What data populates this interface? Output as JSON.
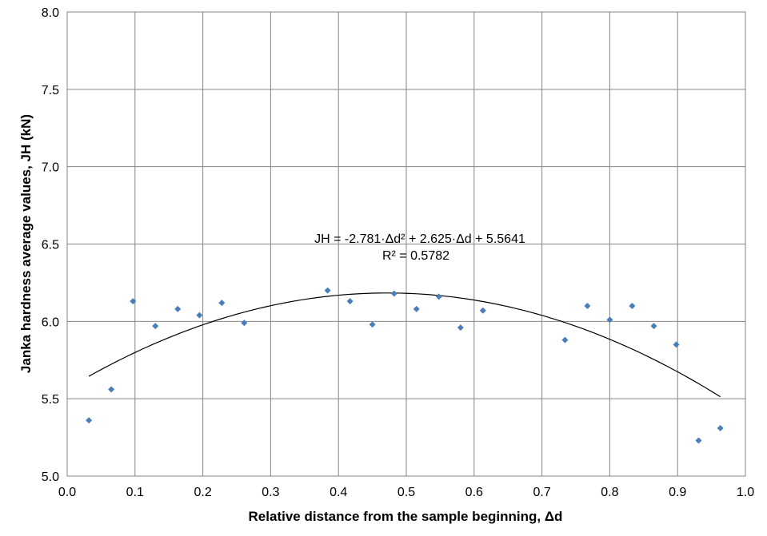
{
  "chart_data": {
    "type": "scatter",
    "xlabel": "Relative distance from the sample beginning, Δd",
    "ylabel": "Janka hardness average values, JH (kN)",
    "xlim": [
      0.0,
      1.0
    ],
    "ylim": [
      5.0,
      8.0
    ],
    "xticks": [
      "0.0",
      "0.1",
      "0.2",
      "0.3",
      "0.4",
      "0.5",
      "0.6",
      "0.7",
      "0.8",
      "0.9",
      "1.0"
    ],
    "yticks": [
      "5.0",
      "5.5",
      "6.0",
      "6.5",
      "7.0",
      "7.5",
      "8.0"
    ],
    "grid": true,
    "marker_color": "#4a7ebb",
    "points": [
      {
        "x": 0.032,
        "y": 5.36
      },
      {
        "x": 0.065,
        "y": 5.56
      },
      {
        "x": 0.097,
        "y": 6.13
      },
      {
        "x": 0.13,
        "y": 5.97
      },
      {
        "x": 0.163,
        "y": 6.08
      },
      {
        "x": 0.195,
        "y": 6.04
      },
      {
        "x": 0.228,
        "y": 6.12
      },
      {
        "x": 0.261,
        "y": 5.99
      },
      {
        "x": 0.384,
        "y": 6.2
      },
      {
        "x": 0.417,
        "y": 6.13
      },
      {
        "x": 0.45,
        "y": 5.98
      },
      {
        "x": 0.482,
        "y": 6.18
      },
      {
        "x": 0.515,
        "y": 6.08
      },
      {
        "x": 0.548,
        "y": 6.16
      },
      {
        "x": 0.58,
        "y": 5.96
      },
      {
        "x": 0.613,
        "y": 6.07
      },
      {
        "x": 0.734,
        "y": 5.88
      },
      {
        "x": 0.767,
        "y": 6.1
      },
      {
        "x": 0.8,
        "y": 6.01
      },
      {
        "x": 0.833,
        "y": 6.1
      },
      {
        "x": 0.865,
        "y": 5.97
      },
      {
        "x": 0.898,
        "y": 5.85
      },
      {
        "x": 0.931,
        "y": 5.23
      },
      {
        "x": 0.963,
        "y": 5.31
      }
    ],
    "trendline": {
      "type": "polynomial",
      "coefficients": [
        -2.781,
        2.625,
        5.5641
      ],
      "x_range": [
        0.032,
        0.963
      ],
      "equation": "JH = -2.781·Δd² + 2.625·Δd + 5.5641",
      "r_squared": "R² = 0.5782"
    }
  }
}
